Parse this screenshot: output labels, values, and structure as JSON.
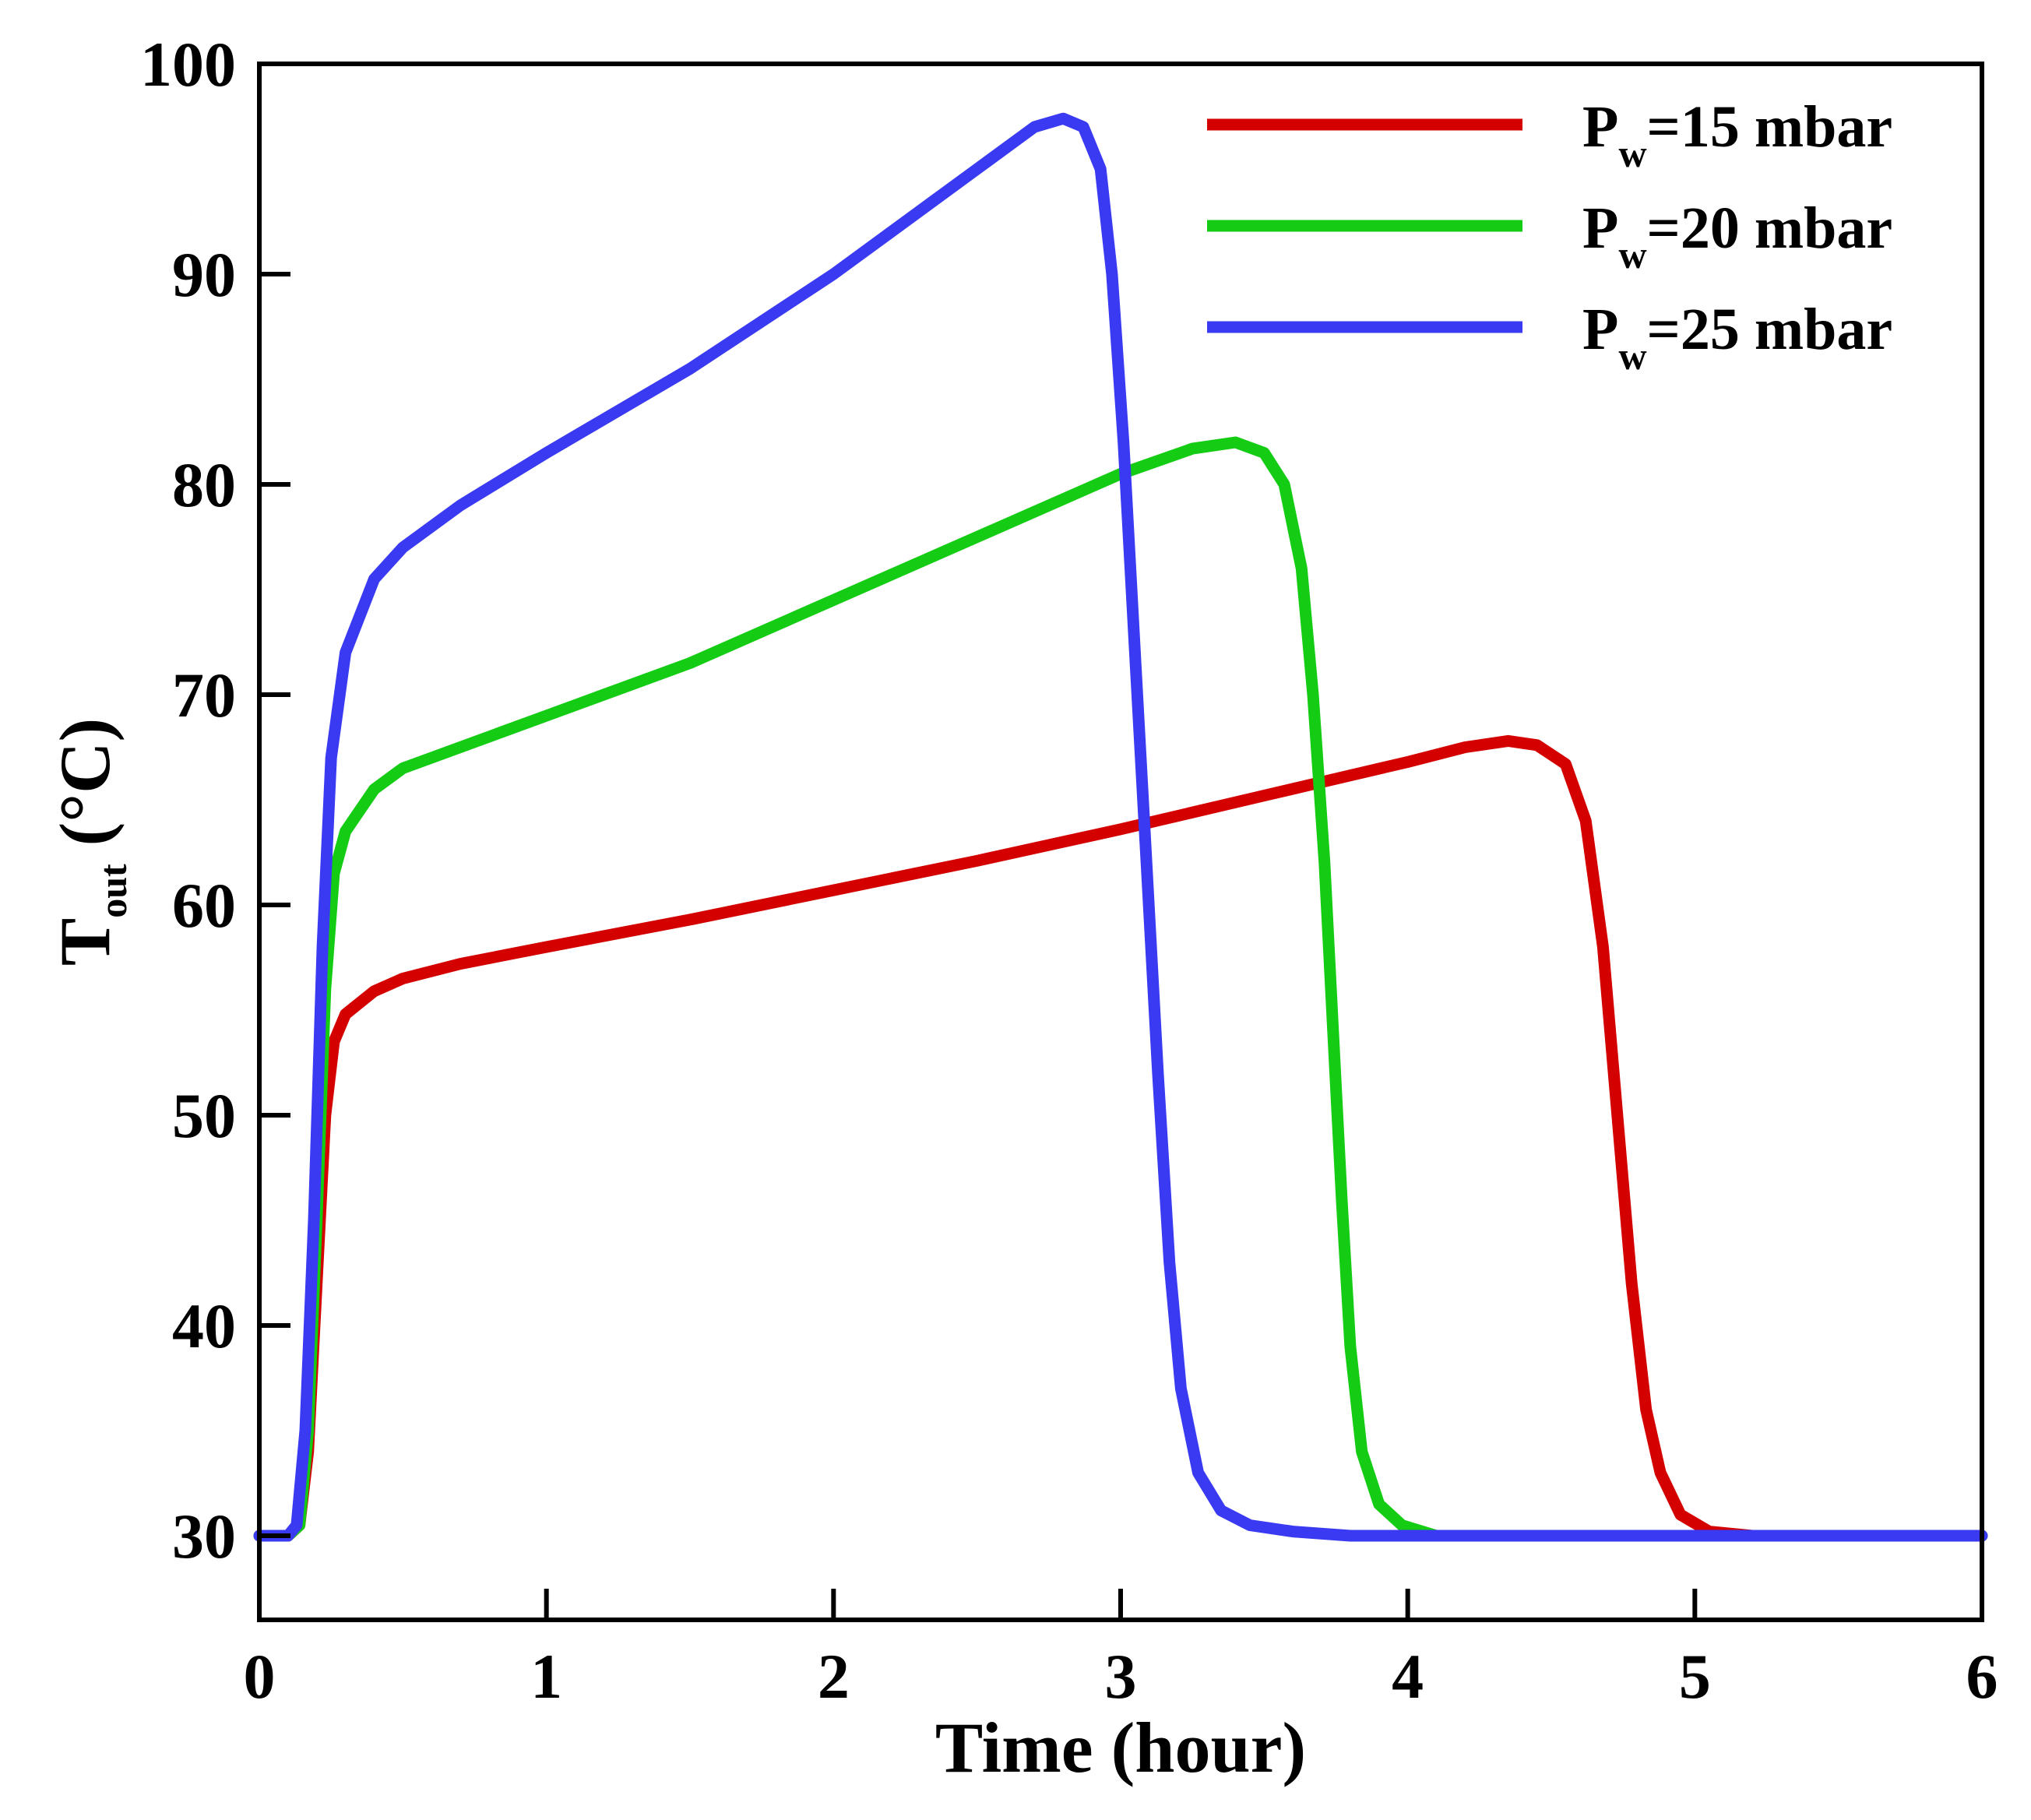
{
  "chart_data": {
    "type": "line",
    "title": "",
    "xlabel": "Time (hour)",
    "ylabel": {
      "main": "T",
      "sub": "out",
      "unit": " (°C)"
    },
    "xlim": [
      0,
      6
    ],
    "ylim": [
      26,
      100
    ],
    "xticks": [
      0,
      1,
      2,
      3,
      4,
      5,
      6
    ],
    "xtick_labels": [
      "0",
      "1",
      "2",
      "3",
      "4",
      "5",
      "6"
    ],
    "yticks": [
      30,
      40,
      50,
      60,
      70,
      80,
      90,
      100
    ],
    "ytick_labels": [
      "30",
      "40",
      "50",
      "60",
      "70",
      "80",
      "90",
      "100"
    ],
    "grid": false,
    "legend_position": "top-right",
    "series": [
      {
        "name": "Pw=15 mbar",
        "label_main": "P",
        "label_sub": "w",
        "label_rest": "=15 mbar",
        "color": "#d40000",
        "points": [
          [
            0,
            30
          ],
          [
            0.1,
            30
          ],
          [
            0.14,
            30.5
          ],
          [
            0.17,
            34
          ],
          [
            0.2,
            42
          ],
          [
            0.23,
            50
          ],
          [
            0.26,
            53.5
          ],
          [
            0.3,
            54.8
          ],
          [
            0.4,
            55.9
          ],
          [
            0.5,
            56.5
          ],
          [
            0.7,
            57.2
          ],
          [
            1.0,
            58.0
          ],
          [
            1.5,
            59.3
          ],
          [
            2.0,
            60.7
          ],
          [
            2.5,
            62.1
          ],
          [
            3.0,
            63.6
          ],
          [
            3.5,
            65.2
          ],
          [
            4.0,
            66.8
          ],
          [
            4.2,
            67.5
          ],
          [
            4.35,
            67.8
          ],
          [
            4.45,
            67.6
          ],
          [
            4.55,
            66.7
          ],
          [
            4.62,
            64
          ],
          [
            4.68,
            58
          ],
          [
            4.73,
            50
          ],
          [
            4.78,
            42
          ],
          [
            4.83,
            36
          ],
          [
            4.88,
            33
          ],
          [
            4.95,
            31
          ],
          [
            5.05,
            30.2
          ],
          [
            5.2,
            30
          ],
          [
            6,
            30
          ]
        ]
      },
      {
        "name": "Pw=20 mbar",
        "label_main": "P",
        "label_sub": "w",
        "label_rest": "=20 mbar",
        "color": "#14cc14",
        "points": [
          [
            0,
            30
          ],
          [
            0.1,
            30
          ],
          [
            0.14,
            30.5
          ],
          [
            0.17,
            35
          ],
          [
            0.2,
            45
          ],
          [
            0.23,
            56
          ],
          [
            0.26,
            61.5
          ],
          [
            0.3,
            63.5
          ],
          [
            0.4,
            65.5
          ],
          [
            0.5,
            66.5
          ],
          [
            0.7,
            67.5
          ],
          [
            1.0,
            69.0
          ],
          [
            1.5,
            71.5
          ],
          [
            2.0,
            74.5
          ],
          [
            2.5,
            77.5
          ],
          [
            3.0,
            80.5
          ],
          [
            3.25,
            81.7
          ],
          [
            3.4,
            82.0
          ],
          [
            3.5,
            81.5
          ],
          [
            3.57,
            80
          ],
          [
            3.63,
            76
          ],
          [
            3.67,
            70
          ],
          [
            3.71,
            62
          ],
          [
            3.74,
            54
          ],
          [
            3.77,
            46
          ],
          [
            3.8,
            39
          ],
          [
            3.84,
            34
          ],
          [
            3.9,
            31.5
          ],
          [
            3.98,
            30.5
          ],
          [
            4.1,
            30
          ],
          [
            6,
            30
          ]
        ]
      },
      {
        "name": "Pw=25 mbar",
        "label_main": "P",
        "label_sub": "w",
        "label_rest": "=25 mbar",
        "color": "#3a3af2",
        "points": [
          [
            0,
            30
          ],
          [
            0.1,
            30
          ],
          [
            0.13,
            30.5
          ],
          [
            0.16,
            35
          ],
          [
            0.19,
            45
          ],
          [
            0.22,
            58
          ],
          [
            0.25,
            67
          ],
          [
            0.3,
            72
          ],
          [
            0.4,
            75.5
          ],
          [
            0.5,
            77
          ],
          [
            0.7,
            79
          ],
          [
            1.0,
            81.5
          ],
          [
            1.5,
            85.5
          ],
          [
            2.0,
            90
          ],
          [
            2.5,
            95
          ],
          [
            2.7,
            97
          ],
          [
            2.8,
            97.4
          ],
          [
            2.87,
            97
          ],
          [
            2.93,
            95
          ],
          [
            2.97,
            90
          ],
          [
            3.01,
            82
          ],
          [
            3.05,
            72
          ],
          [
            3.09,
            62
          ],
          [
            3.13,
            52
          ],
          [
            3.17,
            43
          ],
          [
            3.21,
            37
          ],
          [
            3.27,
            33
          ],
          [
            3.35,
            31.2
          ],
          [
            3.45,
            30.5
          ],
          [
            3.6,
            30.2
          ],
          [
            3.8,
            30
          ],
          [
            6,
            30
          ]
        ]
      }
    ]
  }
}
